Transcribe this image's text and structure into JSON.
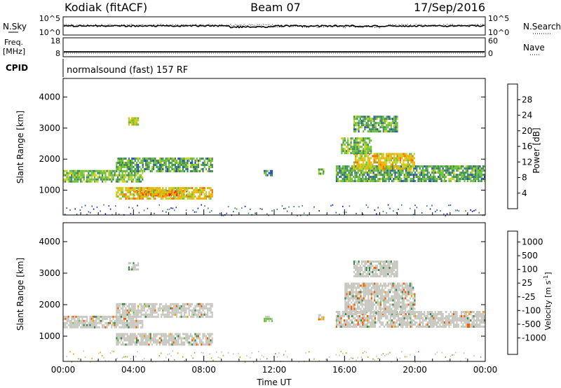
{
  "header": {
    "station": "Kodiak (fitACF)",
    "beam": "Beam 07",
    "date": "17/Sep/2016"
  },
  "top_panels": {
    "nsky_label": "N.Sky",
    "nsearch_label": "N.Search",
    "nsky_ticks": [
      "10^5",
      "10^0"
    ],
    "nsearch_ticks": [
      "10^5",
      "10^0"
    ],
    "freq_label": "Freq.",
    "freq_unit": "[MHz]",
    "freq_ticks": [
      "18",
      "8"
    ],
    "nave_label": "Nave",
    "nave_ticks": [
      "60",
      "0"
    ],
    "cpid_label": "CPID",
    "cpid_value": "normalsound (fast) 157 RF"
  },
  "colors": {
    "power_scale": [
      "#1010e0",
      "#2a52b0",
      "#3d8a5a",
      "#6abf3a",
      "#c8d020",
      "#f0b000",
      "#f07000",
      "#e02000"
    ],
    "velocity_scale": [
      "#e00000",
      "#f06000",
      "#f0a000",
      "#d8d8d8",
      "#d8d8d8",
      "#70c040",
      "#3a8a50",
      "#2a5ab0",
      "#1010c0"
    ],
    "velocity_dominant": "#c8c8c0"
  },
  "chart_data": [
    {
      "type": "heatmap",
      "name": "power",
      "xlabel": "Time UT",
      "ylabel": "Slant Range [km]",
      "xlim": [
        0,
        24
      ],
      "ylim": [
        200,
        4600
      ],
      "x_ticks": [
        "00:00",
        "04:00",
        "08:00",
        "12:00",
        "16:00",
        "20:00",
        "00:00"
      ],
      "y_ticks": [
        "1000",
        "2000",
        "3000",
        "4000"
      ],
      "colorbar": {
        "label": "Power [dB]",
        "range": [
          0,
          32
        ],
        "ticks": [
          "28",
          "24",
          "20",
          "16",
          "12",
          "8",
          "4"
        ]
      },
      "regions": [
        {
          "t0": 0.0,
          "t1": 4.5,
          "r0": 1300,
          "r1": 1650,
          "v": 14
        },
        {
          "t0": 3.0,
          "t1": 8.5,
          "r0": 1600,
          "r1": 2050,
          "v": 12
        },
        {
          "t0": 4.0,
          "t1": 7.0,
          "r0": 800,
          "r1": 1000,
          "v": 30
        },
        {
          "t0": 3.0,
          "t1": 8.5,
          "r0": 700,
          "r1": 1100,
          "v": 20
        },
        {
          "t0": 3.7,
          "t1": 4.3,
          "r0": 3100,
          "r1": 3350,
          "v": 18
        },
        {
          "t0": 11.4,
          "t1": 11.9,
          "r0": 1450,
          "r1": 1650,
          "v": 10
        },
        {
          "t0": 14.5,
          "t1": 14.8,
          "r0": 1550,
          "r1": 1700,
          "v": 14
        },
        {
          "t0": 15.5,
          "t1": 24.0,
          "r0": 1300,
          "r1": 1800,
          "v": 12
        },
        {
          "t0": 16.5,
          "t1": 20.0,
          "r0": 1700,
          "r1": 2200,
          "v": 20
        },
        {
          "t0": 15.8,
          "t1": 17.5,
          "r0": 2200,
          "r1": 2700,
          "v": 14
        },
        {
          "t0": 16.5,
          "t1": 19.0,
          "r0": 2900,
          "r1": 3400,
          "v": 12
        }
      ]
    },
    {
      "type": "heatmap",
      "name": "velocity",
      "xlabel": "Time UT",
      "ylabel": "Slant Range [km]",
      "xlim": [
        0,
        24
      ],
      "ylim": [
        200,
        4600
      ],
      "x_ticks": [
        "00:00",
        "04:00",
        "08:00",
        "12:00",
        "16:00",
        "20:00",
        "00:00"
      ],
      "y_ticks": [
        "1000",
        "2000",
        "3000",
        "4000"
      ],
      "colorbar": {
        "label": "Velocity [m s",
        "label_exp": "-1",
        "range": [
          -1000,
          1000
        ],
        "ticks": [
          "1000",
          "500",
          "100",
          "25",
          "-25",
          "-100",
          "-500",
          "-1000"
        ]
      },
      "regions": [
        {
          "t0": 0.0,
          "t1": 4.5,
          "r0": 1300,
          "r1": 1650,
          "v": 0
        },
        {
          "t0": 3.0,
          "t1": 8.5,
          "r0": 1600,
          "r1": 2050,
          "v": 0
        },
        {
          "t0": 3.0,
          "t1": 8.5,
          "r0": 700,
          "r1": 1100,
          "v": 0
        },
        {
          "t0": 3.7,
          "t1": 4.3,
          "r0": 3100,
          "r1": 3350,
          "v": 200
        },
        {
          "t0": 11.4,
          "t1": 11.9,
          "r0": 1450,
          "r1": 1650,
          "v": 300
        },
        {
          "t0": 14.5,
          "t1": 14.8,
          "r0": 1550,
          "r1": 1700,
          "v": -300
        },
        {
          "t0": 15.5,
          "t1": 24.0,
          "r0": 1300,
          "r1": 1800,
          "v": 0
        },
        {
          "t0": 16.0,
          "t1": 20.0,
          "r0": 1700,
          "r1": 2700,
          "v": 0
        },
        {
          "t0": 16.5,
          "t1": 19.0,
          "r0": 2900,
          "r1": 3400,
          "v": 100
        }
      ]
    }
  ]
}
